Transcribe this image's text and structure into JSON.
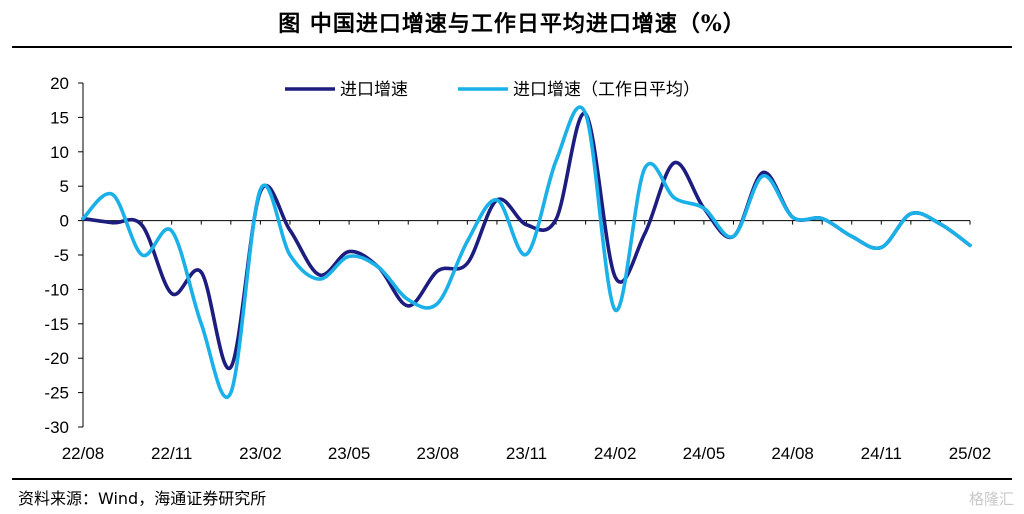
{
  "title": "图  中国进口增速与工作日平均进口增速（%）",
  "source": "资料来源：Wind，海通证券研究所",
  "watermark": "格隆汇",
  "chart_data": {
    "type": "line",
    "x_ticks": [
      "22/08",
      "22/11",
      "23/02",
      "23/05",
      "23/08",
      "23/11",
      "24/02",
      "24/05",
      "24/08",
      "24/11",
      "25/02"
    ],
    "x": [
      "22/08",
      "22/09",
      "22/10",
      "22/11",
      "22/12",
      "23/01",
      "23/02",
      "23/03",
      "23/04",
      "23/05",
      "23/06",
      "23/07",
      "23/08",
      "23/09",
      "23/10",
      "23/11",
      "23/12",
      "24/01",
      "24/02",
      "24/03",
      "24/04",
      "24/05",
      "24/06",
      "24/07",
      "24/08",
      "24/09",
      "24/10",
      "24/11",
      "24/12",
      "25/01",
      "25/02"
    ],
    "ylim": [
      -30,
      20
    ],
    "y_ticks": [
      20,
      15,
      10,
      5,
      0,
      -5,
      -10,
      -15,
      -20,
      -25,
      -30
    ],
    "legend_position": "top",
    "series": [
      {
        "name": "进口增速",
        "color": "#1d1d7f",
        "values": [
          0.3,
          -0.3,
          -0.7,
          -10.6,
          -7.5,
          -21.3,
          4.2,
          -1.4,
          -7.9,
          -4.5,
          -6.8,
          -12.4,
          -7.3,
          -6.2,
          3.0,
          -0.6,
          0.2,
          15.5,
          -8.2,
          -1.9,
          8.4,
          1.8,
          -2.3,
          7.0,
          0.5,
          0.3,
          -2.3,
          -3.9,
          1.0,
          -0.5,
          -3.6
        ]
      },
      {
        "name": "进口增速（工作日平均）",
        "color": "#1ab0e8",
        "values": [
          0.3,
          3.8,
          -5.0,
          -1.5,
          -15.0,
          -25.0,
          4.5,
          -5.0,
          -8.5,
          -5.2,
          -6.8,
          -11.5,
          -12.0,
          -3.0,
          3.0,
          -4.9,
          8.7,
          15.5,
          -13.0,
          7.6,
          3.3,
          1.8,
          -2.3,
          6.5,
          0.5,
          0.3,
          -2.3,
          -3.9,
          1.0,
          -0.5,
          -3.6
        ]
      }
    ]
  }
}
